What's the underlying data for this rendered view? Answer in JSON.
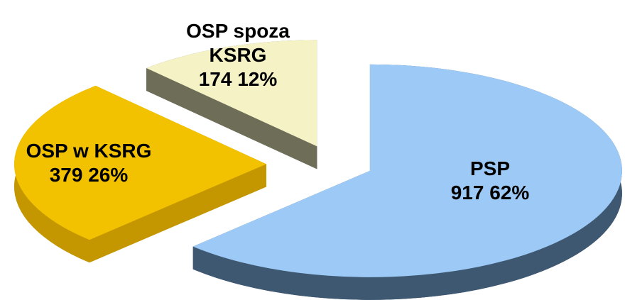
{
  "chart_data": {
    "type": "pie",
    "categories": [
      "PSP",
      "OSP w KSRG",
      "OSP spoza KSRG"
    ],
    "values": [
      917,
      379,
      174
    ],
    "value_labels": [
      "917 62%",
      "379 26%",
      "174 12%"
    ],
    "colors": [
      "#9cc9f5",
      "#f2c200",
      "#f5f2c6"
    ]
  }
}
